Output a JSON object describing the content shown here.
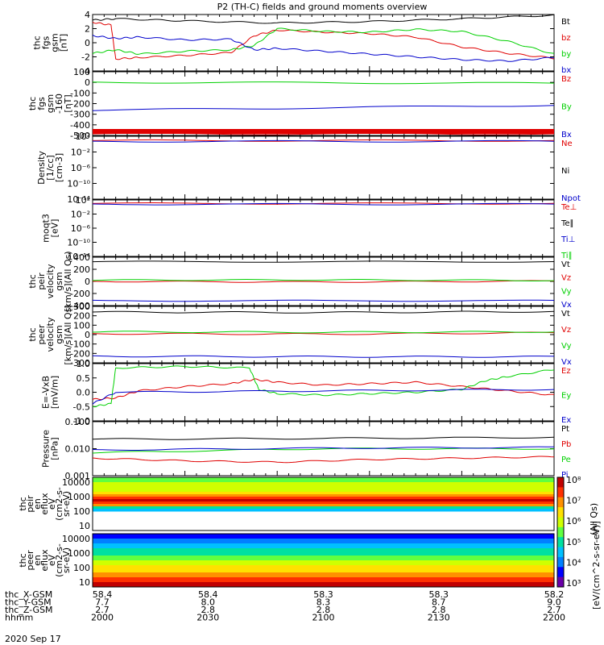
{
  "title": "P2 (TH-C) fields and ground moments overview",
  "date": "2020 Sep 17",
  "colors": {
    "black": "#000000",
    "red": "#e00000",
    "green": "#00d000",
    "blue": "#0000cc",
    "cyan": "#00aaff"
  },
  "chart_data": {
    "type": "line",
    "panels": [
      {
        "name": "fgs",
        "ylabel": [
          "thc",
          "fgs",
          "gsm",
          "[nT]"
        ],
        "ylim": [
          -4,
          4
        ],
        "yticks": [
          "4",
          "2",
          "0",
          "-2",
          "-4"
        ],
        "legend": [
          {
            "label": "Bt",
            "color": "#000000"
          },
          {
            "label": "bz",
            "color": "#e00000"
          },
          {
            "label": "by",
            "color": "#00d000"
          },
          {
            "label": "bx",
            "color": "#0000cc"
          }
        ],
        "series": [
          {
            "name": "Bt",
            "color": "#000000",
            "x": [
              0,
              0.05,
              0.2,
              0.4,
              0.6,
              0.8,
              1
            ],
            "y": [
              3.2,
              3.4,
              3.1,
              2.8,
              3.0,
              3.4,
              3.9
            ]
          },
          {
            "name": "bz",
            "color": "#e00000",
            "x": [
              0,
              0.04,
              0.05,
              0.1,
              0.2,
              0.3,
              0.35,
              0.4,
              0.5,
              0.6,
              0.7,
              0.8,
              0.9,
              1
            ],
            "y": [
              2.9,
              2.5,
              -2.3,
              -2.1,
              -1.8,
              -1.4,
              1.0,
              1.8,
              1.5,
              1.3,
              0.8,
              -0.6,
              -1.5,
              -2.2
            ]
          },
          {
            "name": "by",
            "color": "#00d000",
            "x": [
              0,
              0.05,
              0.1,
              0.2,
              0.3,
              0.35,
              0.4,
              0.5,
              0.6,
              0.7,
              0.8,
              0.9,
              1
            ],
            "y": [
              -1.5,
              -1.0,
              -1.6,
              -1.2,
              -1.0,
              -0.4,
              2.0,
              1.6,
              1.5,
              1.9,
              1.6,
              0.2,
              -1.6
            ]
          },
          {
            "name": "bx",
            "color": "#0000cc",
            "x": [
              0,
              0.05,
              0.1,
              0.2,
              0.3,
              0.35,
              0.4,
              0.5,
              0.6,
              0.7,
              0.8,
              0.9,
              1
            ],
            "y": [
              1.0,
              0.6,
              0.8,
              0.4,
              0.5,
              -1.0,
              -0.8,
              -1.2,
              -1.6,
              -2.0,
              -2.4,
              -2.6,
              -2.1
            ]
          }
        ]
      },
      {
        "name": "fgs-160",
        "ylabel": [
          "thc",
          "fgs",
          "gsm",
          "-160",
          "[nT]"
        ],
        "ylim": [
          -520,
          100
        ],
        "yticks": [
          "100",
          "0",
          "-100",
          "-200",
          "-300",
          "-400",
          "-500"
        ],
        "legend": [
          {
            "label": "Bz",
            "color": "#e00000"
          },
          {
            "label": "By",
            "color": "#00d000"
          },
          {
            "label": "Bx",
            "color": "#0000cc"
          }
        ],
        "series": [
          {
            "name": "Bz",
            "color": "#e00000",
            "x": [
              0,
              1
            ],
            "y": [
              -505,
              -505
            ]
          },
          {
            "name": "By",
            "color": "#00d000",
            "x": [
              0,
              1
            ],
            "y": [
              -2,
              -12
            ]
          },
          {
            "name": "Bx",
            "color": "#0000cc",
            "x": [
              0,
              1
            ],
            "y": [
              -275,
              -225
            ]
          }
        ]
      },
      {
        "name": "density",
        "ylabel": [
          "Density",
          "[1/cc]",
          "[cm-3]"
        ],
        "ylim": [
          -14,
          2
        ],
        "log": true,
        "yticks": [
          "10²",
          "10⁻²",
          "10⁻⁶",
          "10⁻¹⁰",
          "10⁻¹⁴"
        ],
        "legend": [
          {
            "label": "Ne",
            "color": "#e00000"
          },
          {
            "label": "Ni",
            "color": "#000000"
          },
          {
            "label": "Npot",
            "color": "#0000cc"
          }
        ],
        "series": [
          {
            "name": "Ne",
            "color": "#e00000",
            "x": [
              0,
              1
            ],
            "y": [
              0.9,
              0.9
            ]
          },
          {
            "name": "Npot",
            "color": "#0000cc",
            "x": [
              0,
              1
            ],
            "y": [
              0.7,
              0.7
            ]
          }
        ]
      },
      {
        "name": "temps",
        "ylabel": [
          "moqt3",
          "[eV]"
        ],
        "ylim": [
          -14,
          2
        ],
        "log": true,
        "yticks": [
          "10²",
          "10⁻²",
          "10⁻⁶",
          "10⁻¹⁰",
          "10⁻¹⁴"
        ],
        "legend": [
          {
            "label": "Te⊥",
            "color": "#e00000"
          },
          {
            "label": "Te∥",
            "color": "#000000"
          },
          {
            "label": "Ti⊥",
            "color": "#0000cc"
          },
          {
            "label": "Ti∥",
            "color": "#00d000"
          }
        ],
        "series": [
          {
            "name": "Te⊥",
            "color": "#e00000",
            "x": [
              0,
              1
            ],
            "y": [
              1.0,
              1.0
            ]
          },
          {
            "name": "Ti⊥",
            "color": "#0000cc",
            "x": [
              0,
              1
            ],
            "y": [
              0.8,
              0.8
            ]
          }
        ]
      },
      {
        "name": "peir-vel",
        "ylabel": [
          "thc",
          "peir",
          "velocity",
          "gsm",
          "[km/s](All Qs)"
        ],
        "ylim": [
          -400,
          400
        ],
        "yticks": [
          "400",
          "200",
          "0",
          "-200",
          "-400"
        ],
        "legend": [
          {
            "label": "Vt",
            "color": "#000000"
          },
          {
            "label": "Vz",
            "color": "#e00000"
          },
          {
            "label": "Vy",
            "color": "#00d000"
          },
          {
            "label": "Vx",
            "color": "#0000cc"
          }
        ],
        "series": [
          {
            "name": "Vt",
            "color": "#000000",
            "x": [
              0,
              1
            ],
            "y": [
              325,
              325
            ]
          },
          {
            "name": "Vz",
            "color": "#e00000",
            "x": [
              0,
              0.5,
              1
            ],
            "y": [
              0,
              -10,
              5
            ]
          },
          {
            "name": "Vy",
            "color": "#00d000",
            "x": [
              0,
              0.5,
              1
            ],
            "y": [
              20,
              25,
              15
            ]
          },
          {
            "name": "Vx",
            "color": "#0000cc",
            "x": [
              0,
              1
            ],
            "y": [
              -320,
              -320
            ]
          }
        ]
      },
      {
        "name": "peer-vel",
        "ylabel": [
          "thc",
          "peer",
          "velocity",
          "gsm",
          "[km/s](All Qs)"
        ],
        "ylim": [
          -300,
          300
        ],
        "yticks": [
          "300",
          "200",
          "100",
          "0",
          "-100",
          "-200",
          "-300"
        ],
        "legend": [
          {
            "label": "Vt",
            "color": "#000000"
          },
          {
            "label": "Vz",
            "color": "#e00000"
          },
          {
            "label": "Vy",
            "color": "#00d000"
          },
          {
            "label": "Vx",
            "color": "#0000cc"
          }
        ],
        "series": [
          {
            "name": "Vt",
            "color": "#000000",
            "x": [
              0,
              0.5,
              1
            ],
            "y": [
              240,
              235,
              245
            ]
          },
          {
            "name": "Vz",
            "color": "#e00000",
            "x": [
              0,
              0.5,
              1
            ],
            "y": [
              10,
              5,
              20
            ]
          },
          {
            "name": "Vy",
            "color": "#00d000",
            "x": [
              0,
              0.5,
              1
            ],
            "y": [
              30,
              25,
              30
            ]
          },
          {
            "name": "Vx",
            "color": "#0000cc",
            "x": [
              0,
              0.5,
              1
            ],
            "y": [
              -230,
              -235,
              -235
            ]
          }
        ]
      },
      {
        "name": "exb",
        "ylabel": [
          "E=-VxB",
          "[mV/m]"
        ],
        "ylim": [
          -1,
          1
        ],
        "yticks": [
          "1.0",
          "0.5",
          "0.0",
          "-0.5",
          "-1.0"
        ],
        "legend": [
          {
            "label": "Ez",
            "color": "#e00000"
          },
          {
            "label": "Ey",
            "color": "#00d000"
          },
          {
            "label": "Ex",
            "color": "#0000cc"
          }
        ],
        "series": [
          {
            "name": "Ez",
            "color": "#e00000",
            "x": [
              0,
              0.05,
              0.1,
              0.2,
              0.3,
              0.35,
              0.4,
              0.5,
              0.6,
              0.7,
              0.8,
              0.9,
              1
            ],
            "y": [
              -0.25,
              -0.2,
              0.05,
              0.2,
              0.3,
              0.45,
              0.35,
              0.25,
              0.3,
              0.35,
              0.2,
              0.05,
              -0.1
            ]
          },
          {
            "name": "Ey",
            "color": "#00d000",
            "x": [
              0,
              0.04,
              0.05,
              0.2,
              0.34,
              0.36,
              0.4,
              0.5,
              0.6,
              0.7,
              0.8,
              0.85,
              0.9,
              1
            ],
            "y": [
              -0.5,
              -0.4,
              0.85,
              0.9,
              0.85,
              0.1,
              -0.05,
              -0.1,
              -0.05,
              0.0,
              0.1,
              0.4,
              0.55,
              0.8
            ]
          },
          {
            "name": "Ex",
            "color": "#0000cc",
            "x": [
              0,
              0.05,
              0.5,
              1
            ],
            "y": [
              -0.4,
              0.0,
              0.05,
              0.1
            ]
          }
        ]
      },
      {
        "name": "pressure",
        "ylabel": [
          "Pressure",
          "[nPa]"
        ],
        "ylim": [
          -3,
          -1
        ],
        "log": true,
        "yticks": [
          "0.100",
          "0.010",
          "0.001"
        ],
        "legend": [
          {
            "label": "Pt",
            "color": "#000000"
          },
          {
            "label": "Pb",
            "color": "#e00000"
          },
          {
            "label": "Pe",
            "color": "#00d000"
          },
          {
            "label": "Pi",
            "color": "#0000cc"
          }
        ],
        "series": [
          {
            "name": "Pt",
            "color": "#000000",
            "x": [
              0,
              0.5,
              1
            ],
            "y": [
              -1.65,
              -1.62,
              -1.58
            ]
          },
          {
            "name": "Pb",
            "color": "#e00000",
            "x": [
              0,
              0.2,
              0.4,
              0.6,
              0.8,
              1
            ],
            "y": [
              -2.35,
              -2.45,
              -2.5,
              -2.4,
              -2.35,
              -2.3
            ]
          },
          {
            "name": "Pe",
            "color": "#00d000",
            "x": [
              0,
              0.5,
              1
            ],
            "y": [
              -2.15,
              -2.0,
              -2.0
            ]
          },
          {
            "name": "Pi",
            "color": "#0000cc",
            "x": [
              0,
              0.5,
              1
            ],
            "y": [
              -2.05,
              -1.98,
              -1.95
            ]
          }
        ]
      }
    ],
    "spectrograms": [
      {
        "name": "peir",
        "ylabel": [
          "thc",
          "peir",
          "en",
          "eflux",
          "eV",
          "(cm2-s-",
          "sr-eV)"
        ],
        "yticks": [
          "10000",
          "1000",
          "100",
          "10"
        ],
        "extra_label": "(All Qs)"
      },
      {
        "name": "peer",
        "ylabel": [
          "thc",
          "peer",
          "en",
          "eflux",
          "eV",
          "(cm2-s-",
          "sr-eV)"
        ],
        "yticks": [
          "10000",
          "1000",
          "100",
          "10"
        ]
      }
    ],
    "colorbar": {
      "ticks": [
        "10⁸",
        "10⁷",
        "10⁶",
        "10⁵",
        "10⁴",
        "10³"
      ],
      "label": "[eV/(cm^2-s-sr-eV)]"
    },
    "x_axis": {
      "rows": [
        {
          "label": "thc_X-GSM",
          "values": [
            "58.4",
            "58.4",
            "58.3",
            "58.3",
            "58.2"
          ]
        },
        {
          "label": "thc_Y-GSM",
          "values": [
            "7.7",
            "8.0",
            "8.3",
            "8.7",
            "9.0"
          ]
        },
        {
          "label": "thc_Z-GSM",
          "values": [
            "2.7",
            "2.8",
            "2.8",
            "2.8",
            "2.7"
          ]
        },
        {
          "label": "hhmm",
          "values": [
            "2000",
            "2030",
            "2100",
            "2130",
            "2200"
          ]
        }
      ]
    }
  }
}
